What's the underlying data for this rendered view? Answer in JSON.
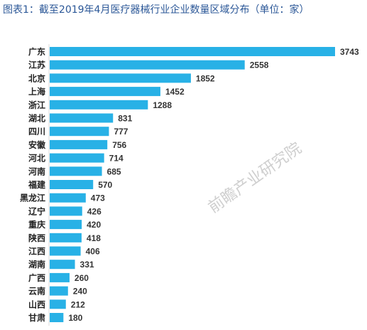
{
  "chart_data": {
    "type": "bar",
    "orientation": "horizontal",
    "title_prefix": "图表1：",
    "title": "截至2019年4月医疗器械行业企业数量区域分布（单位：家）",
    "categories": [
      "广东",
      "江苏",
      "北京",
      "上海",
      "浙江",
      "湖北",
      "四川",
      "安徽",
      "河北",
      "河南",
      "福建",
      "黑龙江",
      "辽宁",
      "重庆",
      "陕西",
      "江西",
      "湖南",
      "广西",
      "云南",
      "山西",
      "甘肃"
    ],
    "values": [
      3743,
      2558,
      1852,
      1452,
      1288,
      831,
      777,
      756,
      714,
      685,
      570,
      473,
      426,
      420,
      418,
      406,
      331,
      260,
      240,
      212,
      180
    ],
    "xlim": [
      0,
      3743
    ],
    "grid": false,
    "legend": "none",
    "bar_color": "#28b1e6"
  },
  "watermark": "前瞻产业研究院"
}
